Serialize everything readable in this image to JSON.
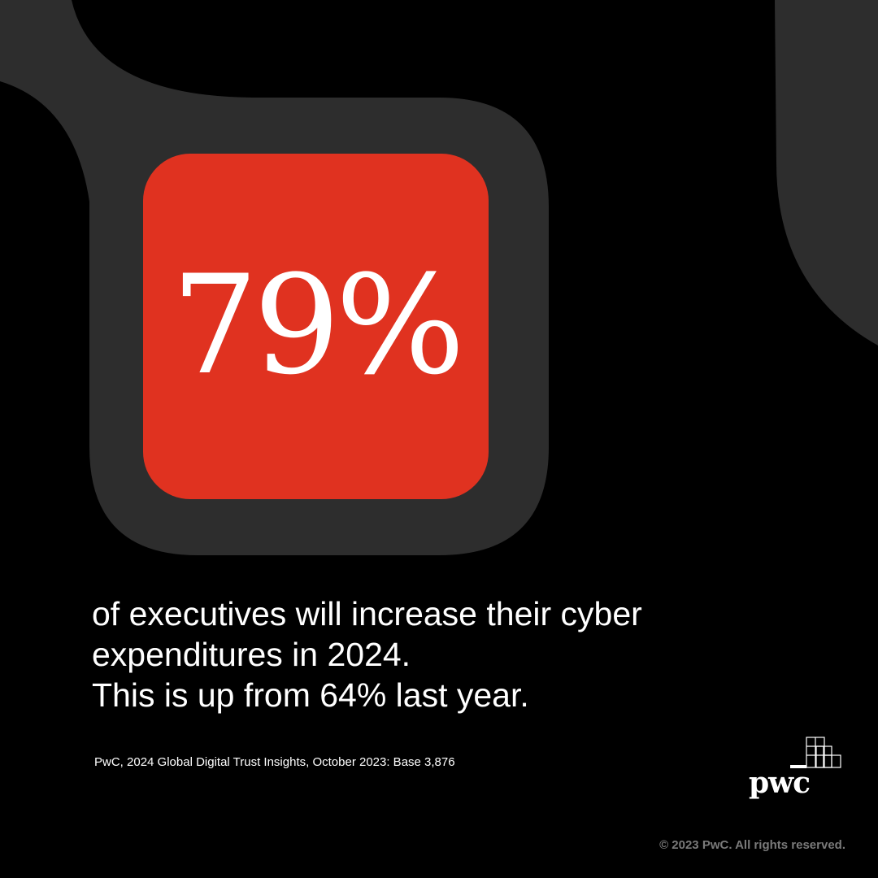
{
  "stat": {
    "value": "79%"
  },
  "headline": {
    "line1": "of executives will increase their cyber",
    "line2": "expenditures in 2024.",
    "line3": "This is up from 64% last year."
  },
  "source": "PwC, 2024 Global Digital Trust Insights, October 2023: Base 3,876",
  "logo": {
    "wordmark": "pwc"
  },
  "copyright": "© 2023 PwC. All rights reserved.",
  "colors": {
    "background": "#000000",
    "accent_red": "#e03220",
    "shape_gray": "#2d2d2d",
    "text": "#ffffff",
    "muted_text": "#7a7a7a"
  }
}
